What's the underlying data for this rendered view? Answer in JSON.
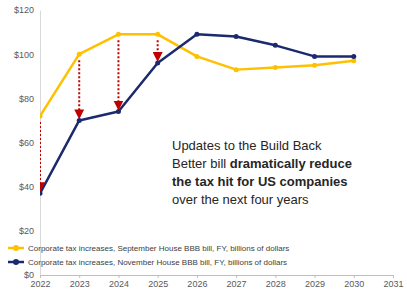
{
  "chart_data": {
    "type": "line",
    "x": [
      2022,
      2023,
      2024,
      2025,
      2026,
      2027,
      2028,
      2029,
      2030
    ],
    "xlim": [
      2022,
      2031
    ],
    "xticks": [
      2022,
      2023,
      2024,
      2025,
      2026,
      2027,
      2028,
      2029,
      2030,
      2031
    ],
    "ylim": [
      0,
      120
    ],
    "yticks": [
      {
        "value": 0,
        "label": "$0"
      },
      {
        "value": 20,
        "label": "$20"
      },
      {
        "value": 40,
        "label": "$40"
      },
      {
        "value": 60,
        "label": "$60"
      },
      {
        "value": 80,
        "label": "$80"
      },
      {
        "value": 100,
        "label": "$100"
      },
      {
        "value": 120,
        "label": "$120"
      }
    ],
    "grid": false,
    "legend": "lower left",
    "series": [
      {
        "name": "Corporate tax increases, September House BBB bill, FY, billions of dollars",
        "color": "#ffc000",
        "marker": "circle",
        "values": [
          72,
          100,
          109,
          109,
          99,
          93,
          94,
          95,
          97
        ]
      },
      {
        "name": "Corporate tax increases, November House BBB bill, FY, billions of dollars",
        "color": "#1b2a6e",
        "marker": "circle",
        "values": [
          37,
          70,
          74,
          96,
          109,
          108,
          104,
          99,
          99
        ]
      }
    ],
    "annotation": [
      [
        "Updates to the Build Back"
      ],
      [
        "Better bill ",
        "dramatically reduce"
      ],
      [
        "the tax hit for US companies"
      ],
      [
        "over the next four years"
      ]
    ]
  }
}
